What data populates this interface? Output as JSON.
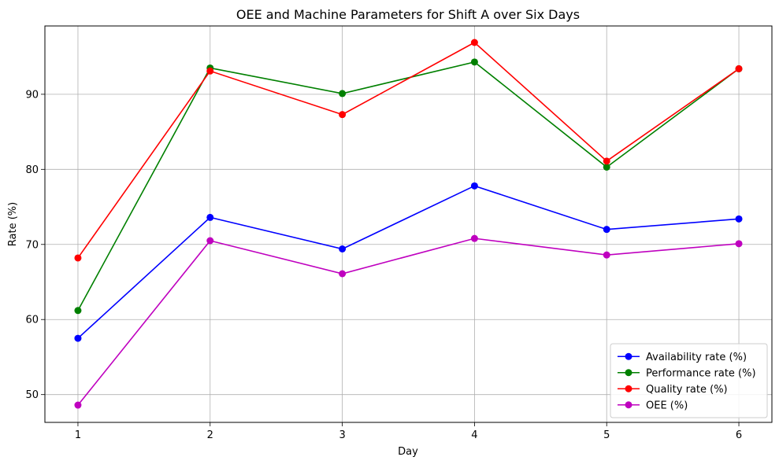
{
  "chart_data": {
    "type": "line",
    "title": "OEE and Machine Parameters for Shift A over Six Days",
    "xlabel": "Day",
    "ylabel": "Rate (%)",
    "x": [
      1,
      2,
      3,
      4,
      5,
      6
    ],
    "xlim": [
      0.75,
      6.25
    ],
    "ylim": [
      46.3,
      99.1
    ],
    "yticks": [
      50,
      60,
      70,
      80,
      90
    ],
    "grid": true,
    "legend_position": "lower-right",
    "series": [
      {
        "name": "Availability rate (%)",
        "color": "#0000ff",
        "values": [
          57.5,
          73.6,
          69.4,
          77.8,
          72.0,
          73.4
        ]
      },
      {
        "name": "Performance rate (%)",
        "color": "#008000",
        "values": [
          61.2,
          93.5,
          90.1,
          94.3,
          80.3,
          93.4
        ]
      },
      {
        "name": "Quality rate (%)",
        "color": "#ff0000",
        "values": [
          68.2,
          93.1,
          87.3,
          96.9,
          81.1,
          93.4
        ]
      },
      {
        "name": "OEE (%)",
        "color": "#bf00bf",
        "values": [
          48.6,
          70.5,
          66.1,
          70.8,
          68.6,
          70.1
        ]
      }
    ]
  }
}
